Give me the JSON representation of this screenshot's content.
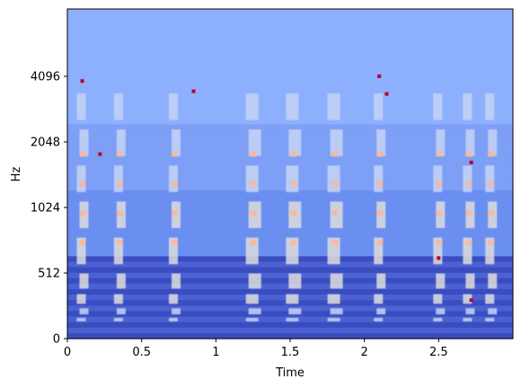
{
  "chart_data": {
    "type": "heatmap",
    "title": "",
    "xlabel": "Time",
    "ylabel": "Hz",
    "x_scale": "linear",
    "y_scale": "log2 (librosa-style, linear below ~512 Hz)",
    "xlim": [
      0,
      3.0
    ],
    "ylim": [
      0,
      11025
    ],
    "x_ticks": [
      0,
      0.5,
      1,
      1.5,
      2,
      2.5
    ],
    "x_tick_labels": [
      "0",
      "0.5",
      "1",
      "1.5",
      "2",
      "2.5"
    ],
    "y_ticks": [
      0,
      512,
      1024,
      2048,
      4096
    ],
    "y_tick_labels": [
      "0",
      "512",
      "1024",
      "2048",
      "4096"
    ],
    "colormap": "coolwarm",
    "grid": false,
    "legend": "none",
    "bursts_approx_time_s": [
      0.1,
      0.35,
      0.72,
      1.25,
      1.52,
      1.8,
      2.1,
      2.5,
      2.7,
      2.85
    ]
  },
  "colors": {
    "background_low": "#3b4cc0",
    "background_mid": "#6b8ff0",
    "background_high": "#8db0fe",
    "energy_mid": "#dddddd",
    "energy_high": "#f7b89c",
    "peak": "#b40426"
  }
}
